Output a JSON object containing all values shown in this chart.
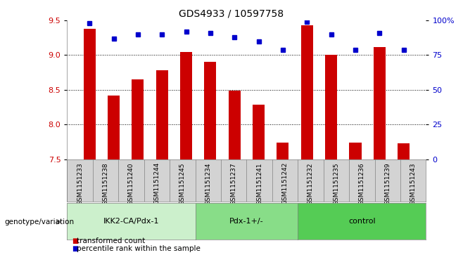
{
  "title": "GDS4933 / 10597758",
  "samples": [
    "GSM1151233",
    "GSM1151238",
    "GSM1151240",
    "GSM1151244",
    "GSM1151245",
    "GSM1151234",
    "GSM1151237",
    "GSM1151241",
    "GSM1151242",
    "GSM1151232",
    "GSM1151235",
    "GSM1151236",
    "GSM1151239",
    "GSM1151243"
  ],
  "bar_values": [
    9.38,
    8.42,
    8.65,
    8.78,
    9.05,
    8.9,
    8.49,
    8.29,
    7.74,
    9.43,
    9.0,
    7.74,
    9.12,
    7.73
  ],
  "percentile_values": [
    98,
    87,
    90,
    90,
    92,
    91,
    88,
    85,
    79,
    99,
    90,
    79,
    91,
    79
  ],
  "bar_bottom": 7.5,
  "ylim_left": [
    7.5,
    9.5
  ],
  "ylim_right": [
    0,
    100
  ],
  "yticks_left": [
    7.5,
    8.0,
    8.5,
    9.0,
    9.5
  ],
  "yticks_right": [
    0,
    25,
    50,
    75,
    100
  ],
  "ytick_labels_right": [
    "0",
    "25",
    "50",
    "75",
    "100%"
  ],
  "bar_color": "#cc0000",
  "dot_color": "#0000cc",
  "groups": [
    {
      "label": "IKK2-CA/Pdx-1",
      "start": 0,
      "end": 5,
      "color": "#ccf0cc"
    },
    {
      "label": "Pdx-1+/-",
      "start": 5,
      "end": 9,
      "color": "#88dd88"
    },
    {
      "label": "control",
      "start": 9,
      "end": 14,
      "color": "#55cc55"
    }
  ],
  "group_label_prefix": "genotype/variation",
  "legend_bar_label": "transformed count",
  "legend_dot_label": "percentile rank within the sample",
  "tick_area_color": "#d3d3d3",
  "bar_width": 0.5
}
